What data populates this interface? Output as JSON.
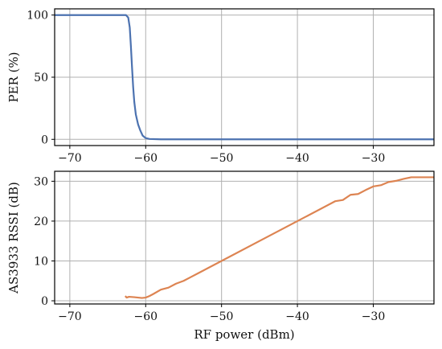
{
  "chart_data": [
    {
      "type": "line",
      "xlabel": "",
      "ylabel": "PER (%)",
      "xlim": [
        -72,
        -22
      ],
      "ylim": [
        -5,
        105
      ],
      "xticks": [
        -70,
        -60,
        -50,
        -40,
        -30
      ],
      "yticks": [
        0,
        50,
        100
      ],
      "grid": true,
      "series": [
        {
          "color": "#4c72b0",
          "x": [
            -72,
            -62.6,
            -62.3,
            -62.1,
            -61.95,
            -61.8,
            -61.65,
            -61.5,
            -61.3,
            -61.0,
            -60.7,
            -60.4,
            -60.0,
            -59.5,
            -58,
            -50,
            -40,
            -30,
            -22
          ],
          "y": [
            100,
            100,
            98,
            90,
            75,
            58,
            42,
            30,
            20,
            12,
            7,
            3,
            1,
            0.3,
            0,
            0,
            0,
            0,
            0
          ]
        }
      ]
    },
    {
      "type": "line",
      "xlabel": "RF power (dBm)",
      "ylabel": "AS3933 RSSI (dB)",
      "xlim": [
        -72,
        -22
      ],
      "ylim": [
        -0.8,
        32.5
      ],
      "xticks": [
        -70,
        -60,
        -50,
        -40,
        -30
      ],
      "yticks": [
        0,
        10,
        20,
        30
      ],
      "grid": true,
      "series": [
        {
          "color": "#dd8452",
          "x": [
            -62.7,
            -62.5,
            -62.2,
            -61.5,
            -60.5,
            -60,
            -59.5,
            -59,
            -58,
            -57,
            -56,
            -55,
            -54,
            -53,
            -50,
            -45,
            -40,
            -35,
            -34,
            -33,
            -32,
            -31,
            -30,
            -29,
            -28,
            -27,
            -26,
            -25,
            -22
          ],
          "y": [
            1.2,
            0.8,
            1.0,
            0.9,
            0.7,
            0.8,
            1.2,
            1.7,
            2.8,
            3.3,
            4.3,
            5.0,
            6.0,
            7.0,
            10.0,
            15.0,
            20.0,
            25.0,
            25.3,
            26.6,
            26.8,
            27.8,
            28.7,
            29.0,
            29.8,
            30.1,
            30.6,
            31.0,
            31.0
          ]
        }
      ]
    }
  ]
}
